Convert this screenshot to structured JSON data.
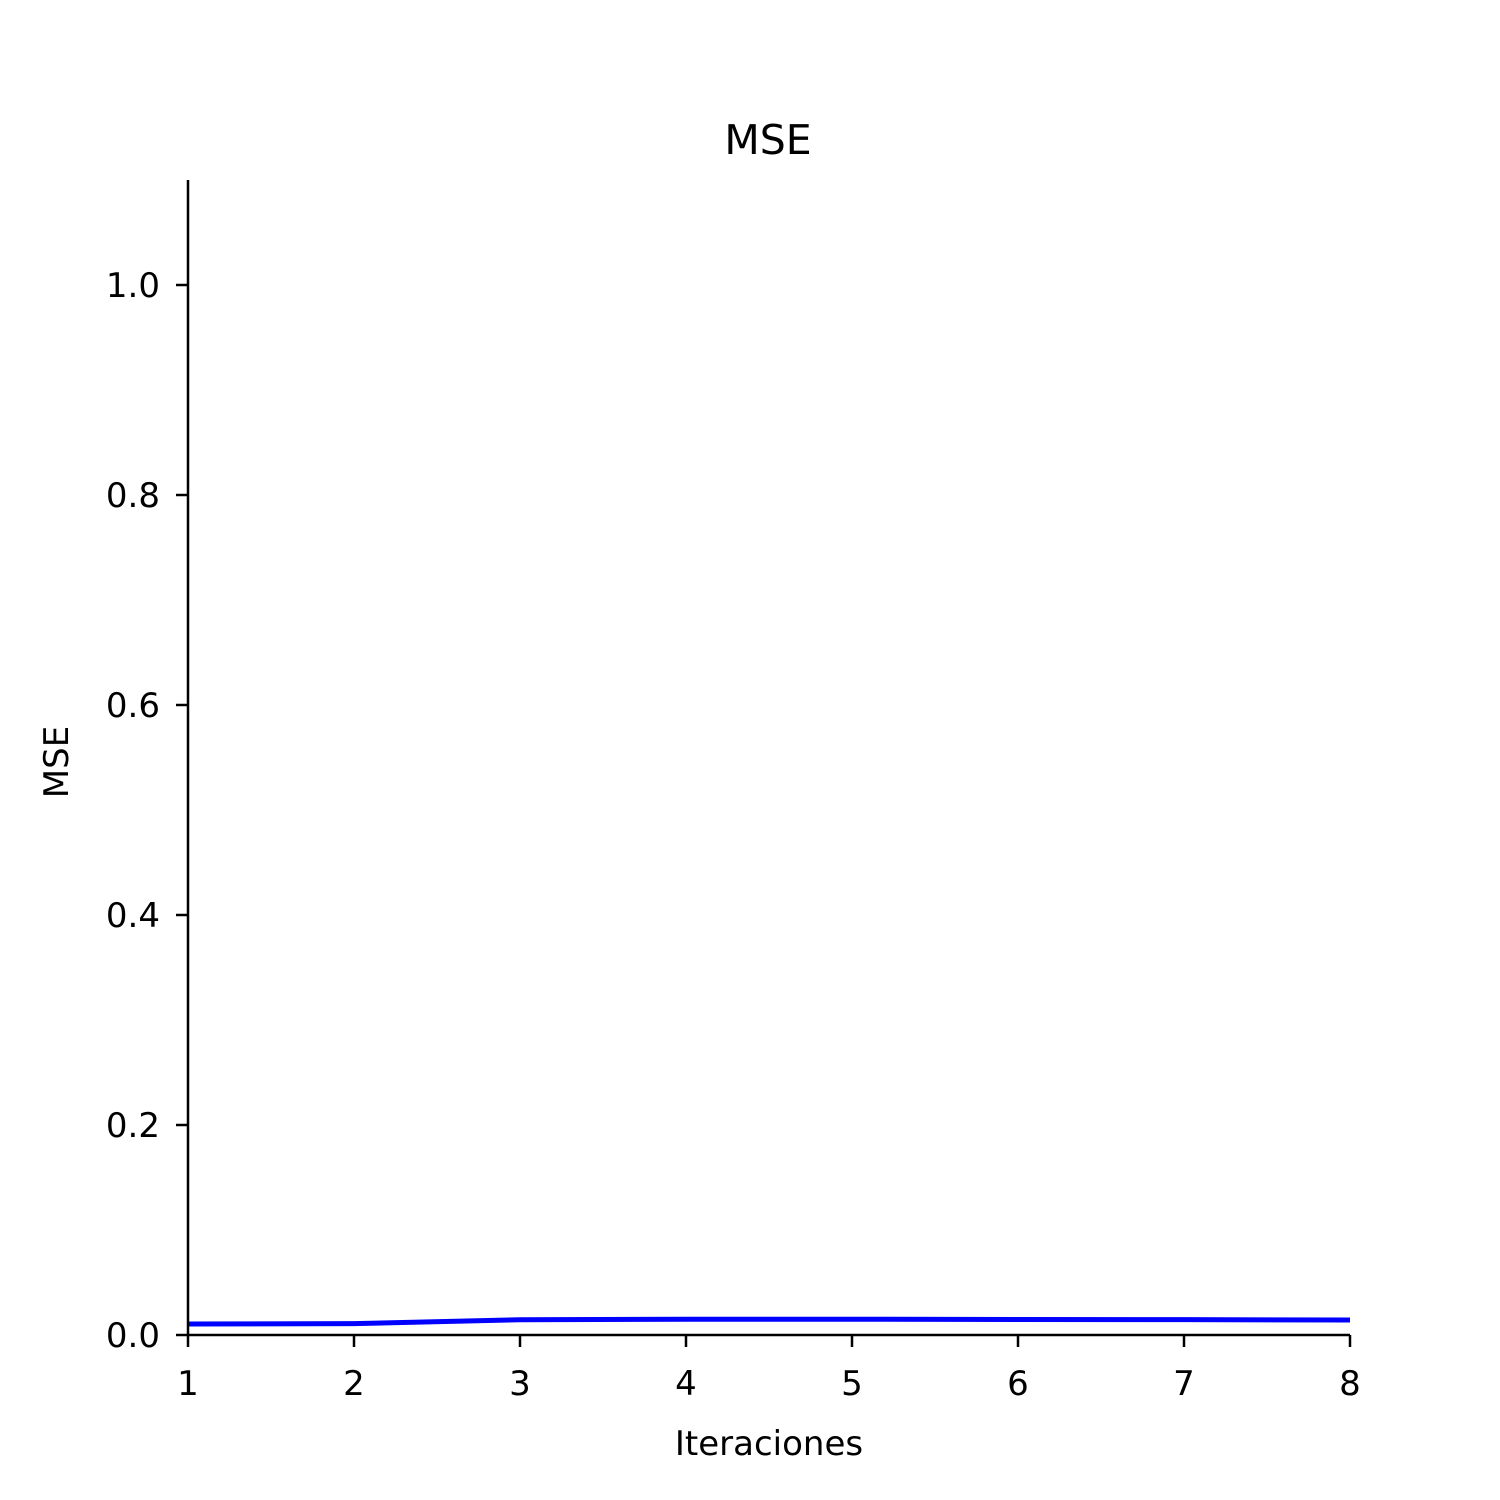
{
  "chart_data": {
    "type": "line",
    "title": "MSE",
    "xlabel": "Iteraciones",
    "ylabel": "MSE",
    "x": [
      1,
      2,
      3,
      4,
      5,
      6,
      7,
      8
    ],
    "series": [
      {
        "values": [
          0.0105,
          0.0108,
          0.0145,
          0.015,
          0.015,
          0.0148,
          0.0146,
          0.0143
        ],
        "color": "#0000ff"
      }
    ],
    "xlim": [
      1,
      8
    ],
    "ylim": [
      0,
      1.1
    ],
    "xticks": [
      "1",
      "2",
      "3",
      "4",
      "5",
      "6",
      "7",
      "8"
    ],
    "yticks": [
      "0.0",
      "0.2",
      "0.4",
      "0.6",
      "0.8",
      "1.0"
    ],
    "grid": false,
    "legend": "none"
  }
}
